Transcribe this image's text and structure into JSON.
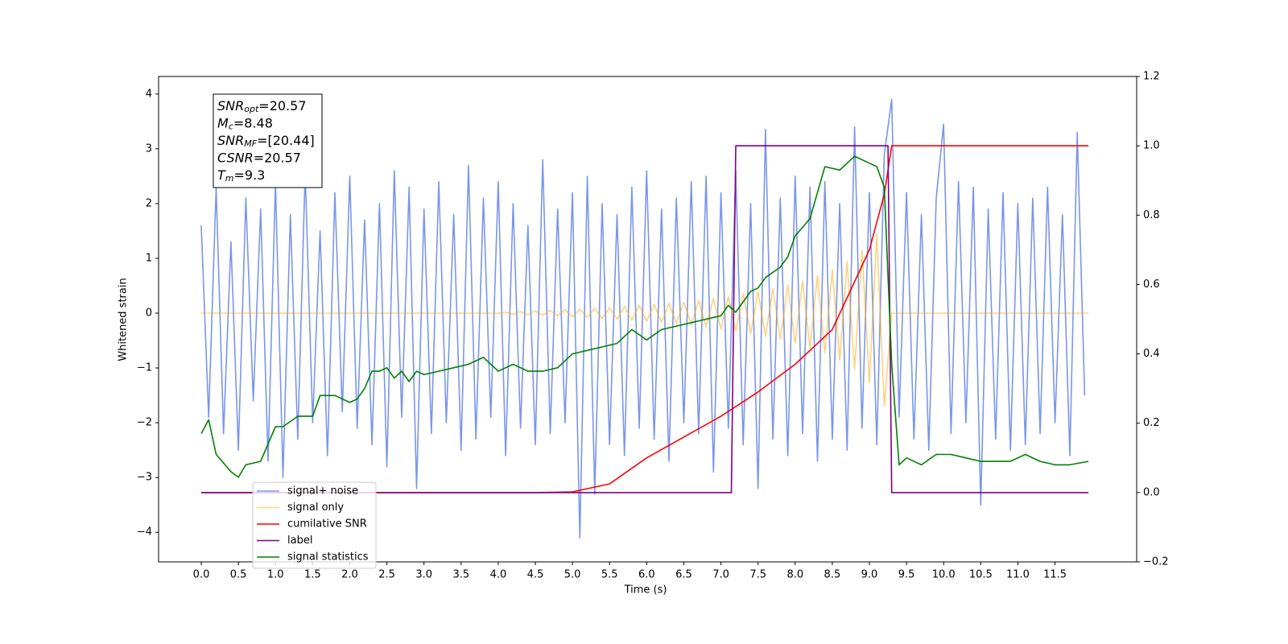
{
  "chart_data": {
    "type": "line",
    "xlabel": "Time (s)",
    "ylabel": "Whitened strain",
    "xlim": [
      -0.575,
      12.6
    ],
    "xticks": [
      {
        "value": 0,
        "label": "0.0"
      },
      {
        "value": 0.5,
        "label": "0.5"
      },
      {
        "value": 1,
        "label": "1.0"
      },
      {
        "value": 1.5,
        "label": "1.5"
      },
      {
        "value": 2,
        "label": "2.0"
      },
      {
        "value": 2.5,
        "label": "2.5"
      },
      {
        "value": 3,
        "label": "3.0"
      },
      {
        "value": 3.5,
        "label": "3.5"
      },
      {
        "value": 4,
        "label": "4.0"
      },
      {
        "value": 4.5,
        "label": "4.5"
      },
      {
        "value": 5,
        "label": "5.0"
      },
      {
        "value": 5.5,
        "label": "5.5"
      },
      {
        "value": 6,
        "label": "6.0"
      },
      {
        "value": 6.5,
        "label": "6.5"
      },
      {
        "value": 7,
        "label": "7.0"
      },
      {
        "value": 7.5,
        "label": "7.5"
      },
      {
        "value": 8,
        "label": "8.0"
      },
      {
        "value": 8.5,
        "label": "8.5"
      },
      {
        "value": 9,
        "label": "9.0"
      },
      {
        "value": 9.5,
        "label": "9.5"
      },
      {
        "value": 10,
        "label": "10.0"
      },
      {
        "value": 10.5,
        "label": "10.5"
      },
      {
        "value": 11,
        "label": "11.0"
      },
      {
        "value": 11.5,
        "label": "11.5"
      }
    ],
    "ylim": [
      -4.54,
      4.32
    ],
    "yticks": [
      {
        "value": -4,
        "label": "−4"
      },
      {
        "value": -3,
        "label": "−3"
      },
      {
        "value": -2,
        "label": "−2"
      },
      {
        "value": -1,
        "label": "−1"
      },
      0,
      1,
      2,
      3,
      4
    ],
    "y2lim": [
      -0.2,
      1.2
    ],
    "y2ticks": [
      {
        "value": -0.2,
        "label": "−0.2"
      },
      {
        "value": 0,
        "label": "0.0"
      },
      0.2,
      0.4,
      0.6,
      0.8,
      {
        "value": 1,
        "label": "1.0"
      },
      1.2
    ],
    "legend": "lower left",
    "annotation": [
      {
        "base": "SNR",
        "sub": "opt",
        "text": "=20.57"
      },
      {
        "base": "M",
        "sub": "c",
        "text": "=8.48"
      },
      {
        "base": "SNR",
        "sub": "MF",
        "text": "=[20.44]"
      },
      {
        "base": "CSNR",
        "text": "=20.57"
      },
      {
        "base": "T",
        "sub": "m",
        "text": "=9.3"
      }
    ],
    "series": [
      {
        "name": "signal+ noise",
        "color": "#4169e1",
        "opacity": 0.7,
        "x": [
          0,
          0.1,
          0.2,
          0.3,
          0.4,
          0.5,
          0.6,
          0.7,
          0.8,
          0.9,
          1,
          1.1,
          1.2,
          1.3,
          1.4,
          1.5,
          1.6,
          1.7,
          1.8,
          1.9,
          2,
          2.1,
          2.2,
          2.3,
          2.4,
          2.5,
          2.6,
          2.7,
          2.8,
          2.9,
          3,
          3.1,
          3.2,
          3.3,
          3.4,
          3.5,
          3.6,
          3.7,
          3.8,
          3.9,
          4,
          4.1,
          4.2,
          4.3,
          4.4,
          4.5,
          4.6,
          4.7,
          4.8,
          4.9,
          5,
          5.1,
          5.2,
          5.3,
          5.4,
          5.5,
          5.6,
          5.7,
          5.8,
          5.9,
          6,
          6.1,
          6.2,
          6.3,
          6.4,
          6.5,
          6.6,
          6.7,
          6.8,
          6.9,
          7,
          7.1,
          7.2,
          7.3,
          7.4,
          7.5,
          7.6,
          7.7,
          7.8,
          7.9,
          8,
          8.1,
          8.2,
          8.3,
          8.4,
          8.5,
          8.6,
          8.7,
          8.8,
          8.9,
          9,
          9.1,
          9.2,
          9.3,
          9.4,
          9.5,
          9.6,
          9.7,
          9.8,
          9.9,
          10,
          10.1,
          10.2,
          10.3,
          10.4,
          10.5,
          10.6,
          10.7,
          10.8,
          10.9,
          11,
          11.1,
          11.2,
          11.3,
          11.4,
          11.5,
          11.6,
          11.7,
          11.8,
          11.9
        ],
        "values": [
          1.6,
          -1.9,
          2.3,
          -2.2,
          1.3,
          -2.5,
          2.1,
          -1.6,
          1.9,
          -2.7,
          2.4,
          -3.0,
          1.8,
          -2.3,
          2.6,
          -2.0,
          1.5,
          -2.6,
          2.2,
          -1.8,
          2.5,
          -2.1,
          1.7,
          -2.4,
          2.0,
          -2.8,
          2.6,
          -1.9,
          2.3,
          -3.2,
          1.9,
          -2.2,
          2.4,
          -2.0,
          1.8,
          -2.5,
          2.7,
          -2.3,
          2.1,
          -1.9,
          2.4,
          -2.6,
          2.0,
          -2.1,
          1.6,
          -2.4,
          2.8,
          -2.2,
          1.9,
          -2.0,
          2.2,
          -4.1,
          2.5,
          -3.3,
          2.0,
          -2.4,
          1.8,
          -2.6,
          2.3,
          -2.1,
          2.6,
          -2.3,
          1.9,
          -2.7,
          2.1,
          -2.0,
          2.4,
          -2.2,
          2.5,
          -2.9,
          2.2,
          -2.1,
          2.6,
          -2.4,
          2.0,
          -3.2,
          3.35,
          -2.3,
          2.1,
          -2.6,
          2.5,
          -2.2,
          2.3,
          -2.7,
          2.4,
          -2.3,
          2.0,
          -2.5,
          3.4,
          -2.1,
          2.2,
          -2.4,
          2.9,
          3.9,
          -1.9,
          2.2,
          -2.3,
          1.8,
          -2.5,
          2.1,
          3.45,
          -2.2,
          2.4,
          -2.0,
          2.3,
          -3.5,
          1.9,
          -2.3,
          2.2,
          -2.5,
          2.0,
          -2.4,
          2.1,
          -2.2,
          2.3,
          -2.0,
          1.8,
          -2.6,
          3.3,
          -1.5
        ]
      },
      {
        "name": "signal only",
        "color": "#ffa500",
        "opacity": 0.5,
        "x": [
          0,
          4.0,
          4.1,
          4.2,
          4.3,
          4.4,
          4.5,
          4.6,
          4.7,
          4.8,
          4.9,
          5.0,
          5.1,
          5.2,
          5.3,
          5.4,
          5.5,
          5.6,
          5.7,
          5.8,
          5.9,
          6.0,
          6.1,
          6.2,
          6.3,
          6.4,
          6.5,
          6.6,
          6.7,
          6.8,
          6.9,
          7.0,
          7.1,
          7.2,
          7.3,
          7.4,
          7.5,
          7.6,
          7.7,
          7.8,
          7.9,
          8.0,
          8.1,
          8.2,
          8.3,
          8.4,
          8.5,
          8.6,
          8.7,
          8.8,
          8.9,
          9.0,
          9.1,
          9.2,
          9.3,
          11.95
        ],
        "values": [
          0,
          0,
          0.02,
          -0.02,
          0.03,
          -0.03,
          0.04,
          -0.04,
          0.05,
          -0.05,
          0.06,
          -0.07,
          0.07,
          -0.08,
          0.09,
          -0.1,
          0.1,
          -0.11,
          0.12,
          -0.13,
          0.14,
          -0.15,
          0.16,
          -0.17,
          0.18,
          -0.19,
          0.2,
          -0.21,
          0.23,
          -0.25,
          0.27,
          -0.29,
          0.31,
          -0.33,
          0.35,
          -0.37,
          0.39,
          -0.42,
          0.45,
          -0.48,
          0.51,
          -0.55,
          0.59,
          -0.63,
          0.68,
          -0.73,
          0.79,
          -0.86,
          0.94,
          -1.03,
          1.14,
          -1.27,
          1.45,
          -1.7,
          0,
          0
        ]
      },
      {
        "name": "cumilative SNR",
        "color": "#ff0000",
        "axis": "y2",
        "x": [
          0,
          4.5,
          5.0,
          5.5,
          6.0,
          6.5,
          7.0,
          7.5,
          8.0,
          8.5,
          9.0,
          9.2,
          9.3,
          11.95
        ],
        "values": [
          0,
          0,
          0.002,
          0.025,
          0.1,
          0.16,
          0.22,
          0.29,
          0.37,
          0.47,
          0.7,
          0.86,
          1,
          1
        ]
      },
      {
        "name": "label",
        "color": "#800080",
        "axis": "y2",
        "x": [
          0,
          7.14,
          7.2,
          9.25,
          9.3,
          11.95
        ],
        "values": [
          0,
          0,
          1,
          1,
          0,
          0
        ]
      },
      {
        "name": "signal statistics",
        "color": "#008000",
        "axis": "y2",
        "x": [
          0,
          0.1,
          0.2,
          0.4,
          0.5,
          0.6,
          0.8,
          1.0,
          1.1,
          1.3,
          1.5,
          1.6,
          1.8,
          2.0,
          2.1,
          2.2,
          2.3,
          2.4,
          2.5,
          2.6,
          2.7,
          2.8,
          2.9,
          3.0,
          3.2,
          3.4,
          3.6,
          3.8,
          4.0,
          4.2,
          4.4,
          4.6,
          4.8,
          5.0,
          5.2,
          5.4,
          5.6,
          5.8,
          6.0,
          6.2,
          6.4,
          6.6,
          6.8,
          7.0,
          7.1,
          7.2,
          7.4,
          7.5,
          7.6,
          7.8,
          7.9,
          8.0,
          8.2,
          8.4,
          8.6,
          8.8,
          9.0,
          9.1,
          9.2,
          9.3,
          9.4,
          9.5,
          9.7,
          9.9,
          10.1,
          10.3,
          10.5,
          10.7,
          10.9,
          11.1,
          11.3,
          11.5,
          11.7,
          11.95
        ],
        "values": [
          0.17,
          0.21,
          0.11,
          0.06,
          0.044,
          0.08,
          0.09,
          0.19,
          0.19,
          0.22,
          0.22,
          0.28,
          0.28,
          0.26,
          0.27,
          0.3,
          0.35,
          0.35,
          0.36,
          0.33,
          0.35,
          0.32,
          0.35,
          0.34,
          0.35,
          0.36,
          0.37,
          0.39,
          0.35,
          0.37,
          0.35,
          0.35,
          0.36,
          0.4,
          0.41,
          0.42,
          0.43,
          0.47,
          0.44,
          0.47,
          0.48,
          0.49,
          0.5,
          0.51,
          0.54,
          0.52,
          0.58,
          0.59,
          0.62,
          0.65,
          0.68,
          0.74,
          0.79,
          0.94,
          0.93,
          0.97,
          0.95,
          0.94,
          0.88,
          0.37,
          0.08,
          0.1,
          0.08,
          0.11,
          0.11,
          0.1,
          0.09,
          0.09,
          0.09,
          0.11,
          0.09,
          0.08,
          0.08,
          0.09
        ]
      }
    ]
  }
}
